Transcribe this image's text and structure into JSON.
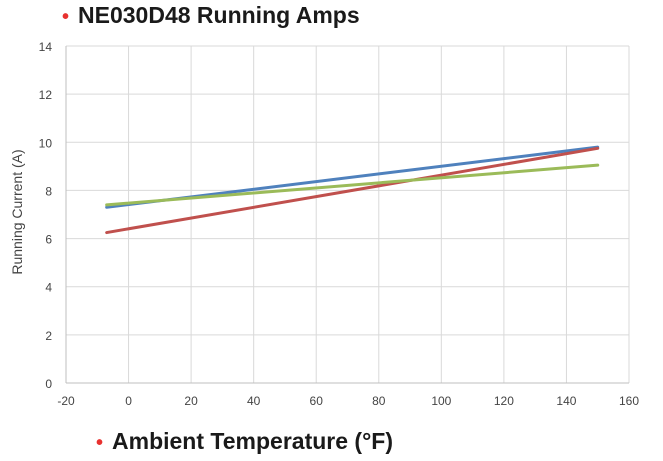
{
  "chart_data": {
    "type": "line",
    "title": "NE030D48 Running Amps",
    "xlabel": "Ambient Temperature (°F)",
    "ylabel": "Running Current (A)",
    "xlim": [
      -20,
      160
    ],
    "ylim": [
      0,
      14
    ],
    "xticks": [
      "-20",
      "0",
      "20",
      "40",
      "60",
      "80",
      "100",
      "120",
      "140",
      "160"
    ],
    "yticks": [
      "0",
      "2",
      "4",
      "6",
      "8",
      "10",
      "12",
      "14"
    ],
    "grid": true,
    "legend": "none",
    "series": [
      {
        "color": "#4f81bd",
        "x": [
          -7,
          150
        ],
        "y": [
          7.3,
          9.8
        ]
      },
      {
        "color": "#c0504d",
        "x": [
          -7,
          150
        ],
        "y": [
          6.25,
          9.75
        ]
      },
      {
        "color": "#9bbb59",
        "x": [
          -7,
          150
        ],
        "y": [
          7.4,
          9.05
        ]
      }
    ]
  },
  "colors": {
    "bullet": "#e8312f",
    "grid": "#d9d9d9"
  }
}
